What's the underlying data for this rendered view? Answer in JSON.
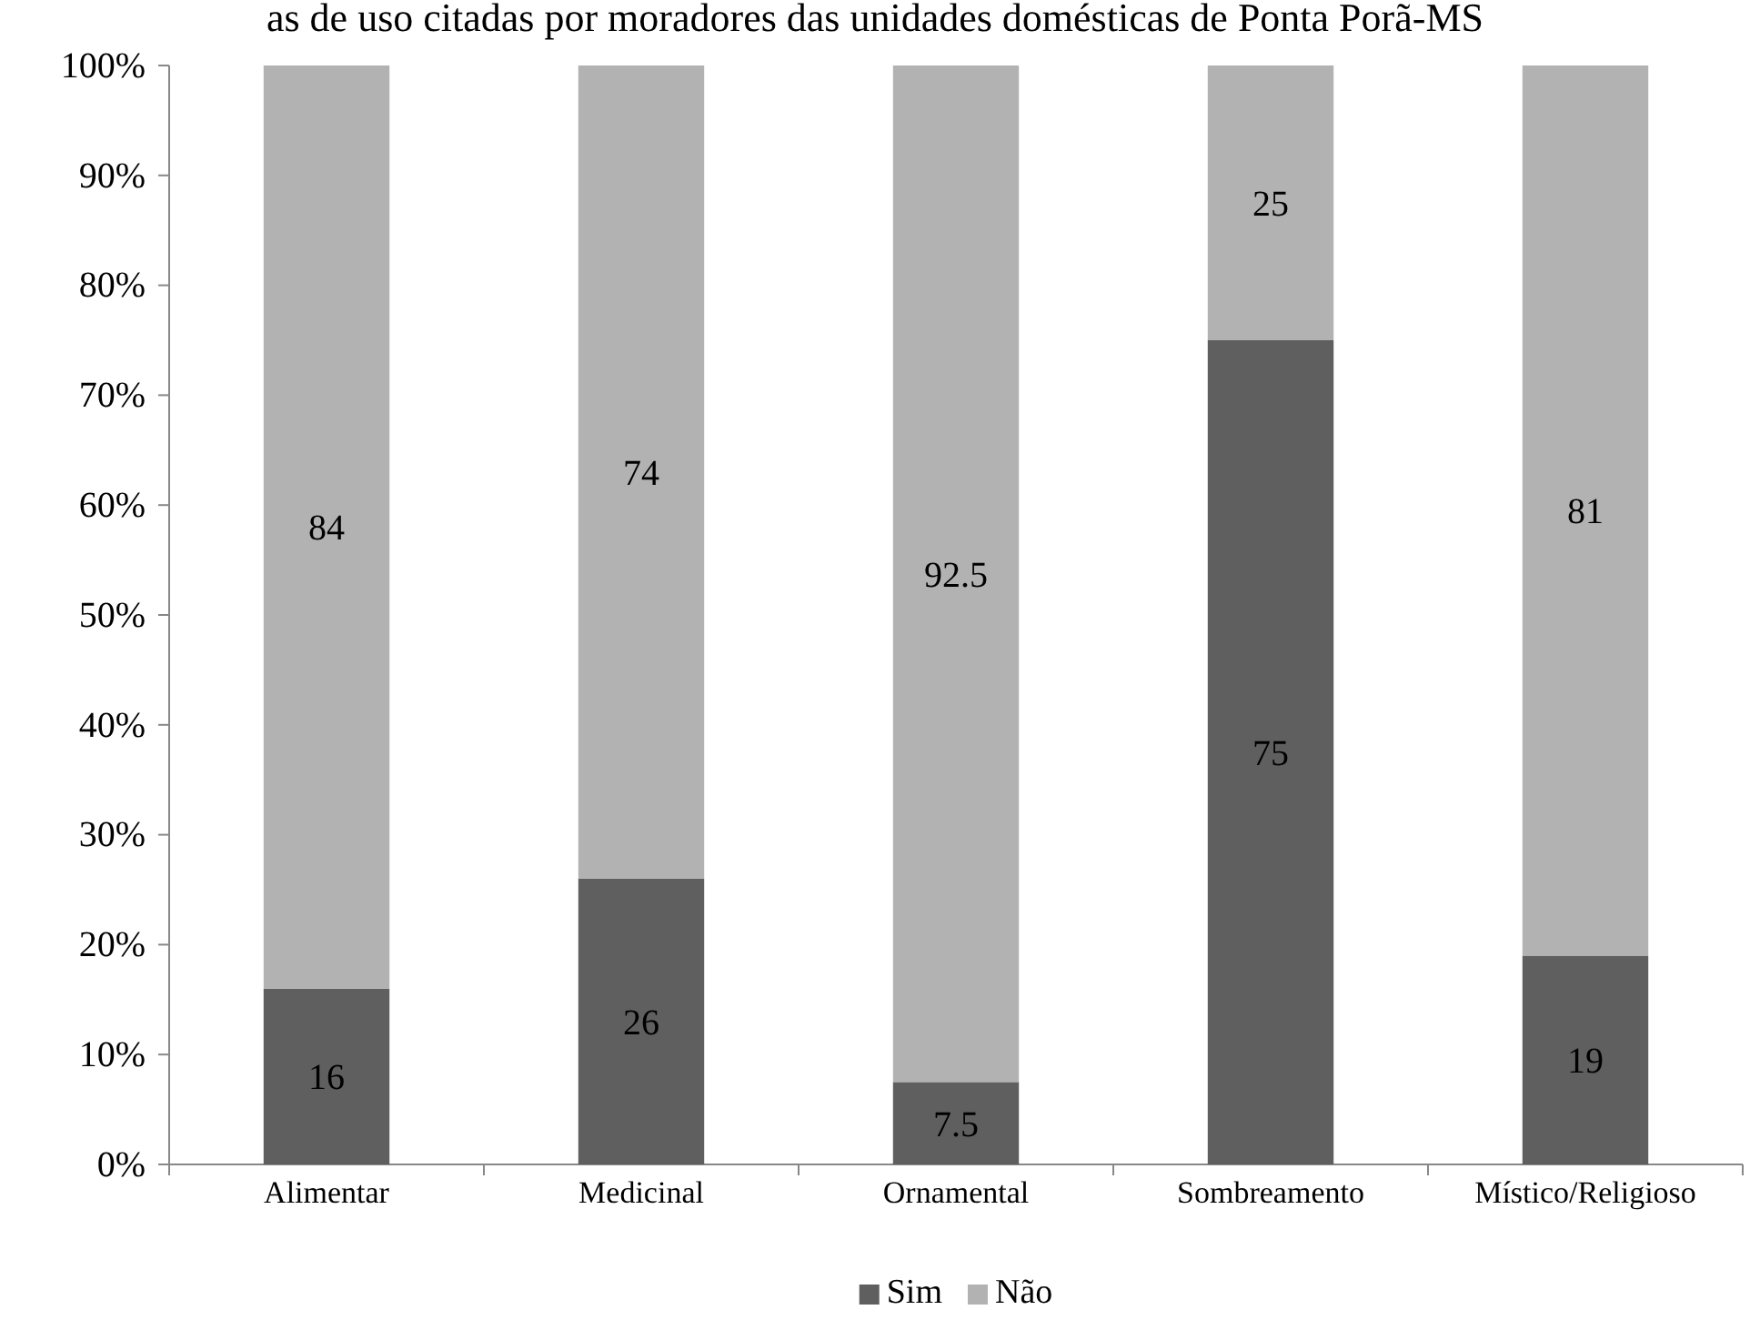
{
  "chart_data": {
    "type": "bar",
    "title": "as de uso citadas por moradores das unidades domésticas de Ponta Porã-MS",
    "categories": [
      "Alimentar",
      "Medicinal",
      "Ornamental",
      "Sombreamento",
      "Místico/Religioso"
    ],
    "series": [
      {
        "name": "Sim",
        "color": "#5f5f5f",
        "values": [
          16,
          26,
          7.5,
          75,
          19
        ]
      },
      {
        "name": "Não",
        "color": "#b2b2b2",
        "values": [
          84,
          74,
          92.5,
          25,
          81
        ]
      }
    ],
    "stacked": true,
    "data_labels": true,
    "legend": "bottom",
    "ylim": [
      0,
      100
    ],
    "yticks": [
      {
        "value": 0,
        "label": "0%"
      },
      {
        "value": 10,
        "label": "10%"
      },
      {
        "value": 20,
        "label": "20%"
      },
      {
        "value": 30,
        "label": "30%"
      },
      {
        "value": 40,
        "label": "40%"
      },
      {
        "value": 50,
        "label": "50%"
      },
      {
        "value": 60,
        "label": "60%"
      },
      {
        "value": 70,
        "label": "70%"
      },
      {
        "value": 80,
        "label": "80%"
      },
      {
        "value": 90,
        "label": "90%"
      },
      {
        "value": 100,
        "label": "100%"
      }
    ]
  }
}
